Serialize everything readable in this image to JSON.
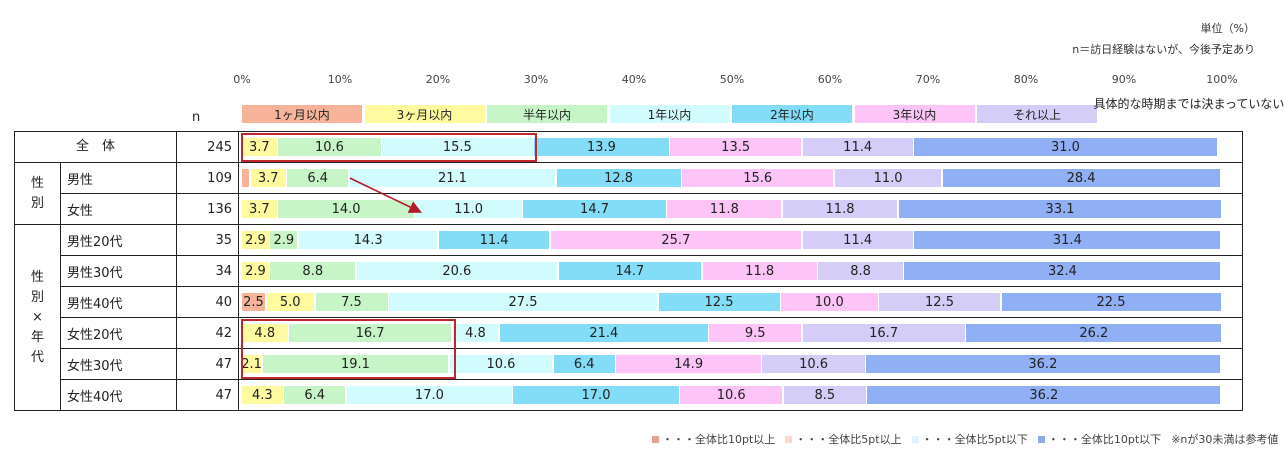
{
  "notes": {
    "unit": "単位（%）",
    "definition": "n＝訪日経験はないが、今後予定あり"
  },
  "n_header": "n",
  "chart_data": {
    "type": "bar",
    "orientation": "horizontal-stacked",
    "unit": "%",
    "xlim": [
      0,
      100
    ],
    "ticks": [
      "0%",
      "10%",
      "20%",
      "30%",
      "40%",
      "50%",
      "60%",
      "70%",
      "80%",
      "90%",
      "100%"
    ],
    "series": [
      {
        "name": "1ヶ月以内",
        "color": "#f7b49a"
      },
      {
        "name": "3ヶ月以内",
        "color": "#fdfaa0"
      },
      {
        "name": "半年以内",
        "color": "#c8f5c8"
      },
      {
        "name": "1年以内",
        "color": "#d2fbfd"
      },
      {
        "name": "2年以内",
        "color": "#84ddf7"
      },
      {
        "name": "3年以内",
        "color": "#fcc4f7"
      },
      {
        "name": "それ以上",
        "color": "#d4cdf7"
      },
      {
        "name": "具体的な時期までは決まっていない",
        "color": "#90aff5"
      }
    ],
    "groups": [
      {
        "label": "全　体",
        "rows": [
          0
        ]
      },
      {
        "label": "性別",
        "rows": [
          1,
          2
        ]
      },
      {
        "label": "性別×年代",
        "rows": [
          3,
          4,
          5,
          6,
          7,
          8
        ]
      }
    ],
    "rows": [
      {
        "label": "",
        "n": "245",
        "values": [
          0.0,
          3.7,
          10.6,
          15.5,
          13.9,
          13.5,
          11.4,
          31.0
        ]
      },
      {
        "label": "男性",
        "n": "109",
        "values": [
          0.9,
          3.7,
          6.4,
          21.1,
          12.8,
          15.6,
          11.0,
          28.4
        ]
      },
      {
        "label": "女性",
        "n": "136",
        "values": [
          0.0,
          3.7,
          14.0,
          11.0,
          14.7,
          11.8,
          11.8,
          33.1
        ]
      },
      {
        "label": "男性20代",
        "n": "35",
        "values": [
          0.0,
          2.9,
          2.9,
          14.3,
          11.4,
          25.7,
          11.4,
          31.4
        ]
      },
      {
        "label": "男性30代",
        "n": "34",
        "values": [
          0.0,
          2.9,
          8.8,
          20.6,
          14.7,
          11.8,
          8.8,
          32.4
        ]
      },
      {
        "label": "男性40代",
        "n": "40",
        "values": [
          2.5,
          5.0,
          7.5,
          27.5,
          12.5,
          10.0,
          12.5,
          22.5
        ]
      },
      {
        "label": "女性20代",
        "n": "42",
        "values": [
          0.0,
          4.8,
          16.7,
          4.8,
          21.4,
          9.5,
          16.7,
          26.2
        ]
      },
      {
        "label": "女性30代",
        "n": "47",
        "values": [
          0.0,
          2.1,
          19.1,
          10.6,
          6.4,
          14.9,
          10.6,
          36.2
        ]
      },
      {
        "label": "女性40代",
        "n": "47",
        "values": [
          0.0,
          4.3,
          6.4,
          17.0,
          17.0,
          10.6,
          8.5,
          36.2
        ]
      }
    ],
    "highlight_boxes": [
      {
        "rows": [
          0
        ],
        "series_from": 0,
        "series_to": 3
      },
      {
        "rows": [
          6,
          7
        ],
        "series_from": 0,
        "series_to": 2
      }
    ],
    "arrow": {
      "from_row": 1,
      "to_row": 2
    }
  },
  "footer": {
    "items": [
      {
        "color": "#e8a090",
        "text": "・・・全体比10pt以上"
      },
      {
        "color": "#fbd9cc",
        "text": "・・・全体比5pt以上"
      },
      {
        "color": "#dff5fb",
        "text": "・・・全体比5pt以下"
      },
      {
        "color": "#8fa9e6",
        "text": "・・・全体比10pt以下"
      }
    ],
    "note": "※nが30未満は参考値"
  }
}
